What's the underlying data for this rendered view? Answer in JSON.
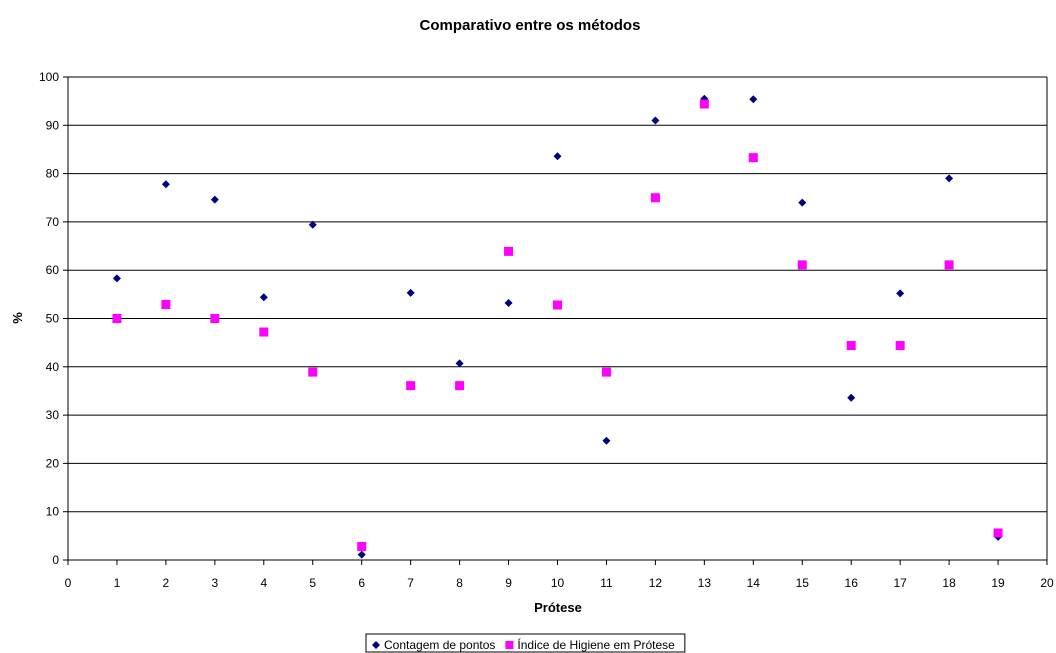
{
  "chart_data": {
    "type": "scatter",
    "title": "Comparativo entre os métodos",
    "xlabel": "Prótese",
    "ylabel": "%",
    "xlim": [
      0,
      20
    ],
    "ylim": [
      0,
      100
    ],
    "x_ticks": [
      "0",
      "1",
      "2",
      "3",
      "4",
      "5",
      "6",
      "7",
      "8",
      "9",
      "10",
      "11",
      "12",
      "13",
      "14",
      "15",
      "16",
      "17",
      "18",
      "19",
      "20"
    ],
    "y_ticks": [
      "0",
      "10",
      "20",
      "30",
      "40",
      "50",
      "60",
      "70",
      "80",
      "90",
      "100"
    ],
    "grid": "horizontal",
    "legend_position": "bottom",
    "x": [
      1,
      2,
      3,
      4,
      5,
      6,
      7,
      8,
      9,
      10,
      11,
      12,
      13,
      14,
      15,
      16,
      17,
      18,
      19
    ],
    "series": [
      {
        "name": "Contagem de pontos",
        "marker": "diamond",
        "color": "#000080",
        "values": [
          58.3,
          77.8,
          74.6,
          54.4,
          69.4,
          1.1,
          55.3,
          40.7,
          53.2,
          83.6,
          24.7,
          91.0,
          95.5,
          95.4,
          74.0,
          33.6,
          55.2,
          79.0,
          4.8
        ]
      },
      {
        "name": "Índice de Higiene em Prótese",
        "marker": "square",
        "color": "#ff00ff",
        "values": [
          50.0,
          52.9,
          50.0,
          47.2,
          38.9,
          2.8,
          36.1,
          36.1,
          63.9,
          52.8,
          38.9,
          75.0,
          94.4,
          83.3,
          61.1,
          44.4,
          44.4,
          61.1,
          5.6
        ]
      }
    ]
  }
}
